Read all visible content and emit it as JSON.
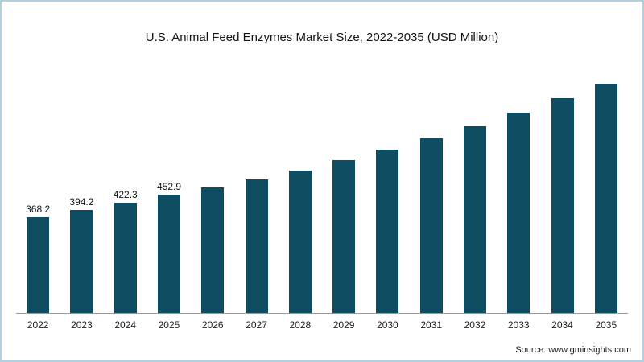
{
  "chart": {
    "title": "U.S. Animal Feed Enzymes Market Size, 2022-2035 (USD Million)"
  },
  "chart_data": {
    "type": "bar",
    "title": "U.S. Animal Feed Enzymes Market Size, 2022-2035 (USD Million)",
    "categories": [
      "2022",
      "2023",
      "2024",
      "2025",
      "2026",
      "2027",
      "2028",
      "2029",
      "2030",
      "2031",
      "2032",
      "2033",
      "2034",
      "2035"
    ],
    "values": [
      368.2,
      394.2,
      422.3,
      452.9,
      480,
      512,
      547,
      586,
      627,
      670,
      717,
      768,
      822,
      880
    ],
    "data_labels": [
      "368.2",
      "394.2",
      "422.3",
      "452.9",
      "",
      "",
      "",
      "",
      "",
      "",
      "",
      "",
      "",
      ""
    ],
    "xlabel": "",
    "ylabel": "",
    "ylim": [
      0,
      950
    ],
    "grid": false,
    "legend": "none",
    "bar_color": "#0e4d61"
  },
  "source": {
    "text": "Source: www.gminsights.com"
  }
}
